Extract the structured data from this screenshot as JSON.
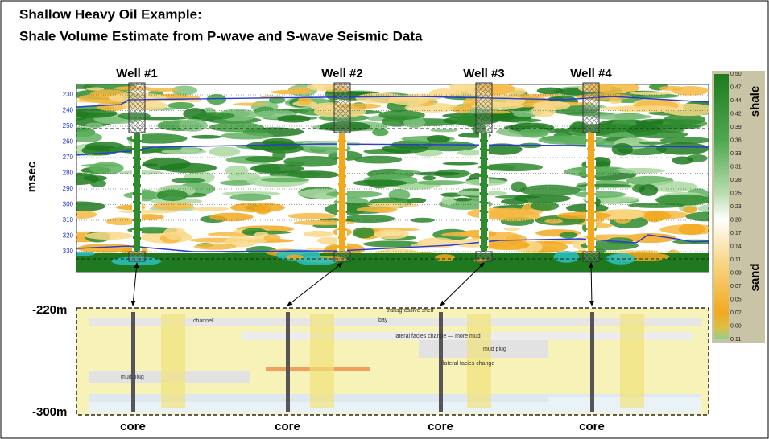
{
  "title": [
    "Shallow Heavy Oil Example:",
    "Shale Volume Estimate from P-wave and S-wave Seismic Data"
  ],
  "wells": [
    "Well #1",
    "Well #2",
    "Well #3",
    "Well #4"
  ],
  "time_axis": {
    "label": "msec",
    "ticks": [
      "230",
      "240",
      "250",
      "260",
      "270",
      "280",
      "290",
      "300",
      "310",
      "320",
      "330"
    ]
  },
  "color_scale": {
    "labels": [
      "0.50",
      "0.47",
      "0.44",
      "0.42",
      "0.39",
      "0.36",
      "0.33",
      "0.31",
      "0.28",
      "0.25",
      "0.23",
      "0.20",
      "0.17",
      "0.14",
      "0.11",
      "0.09",
      "0.07",
      "0.05",
      "0.02",
      "0.00",
      "0.11"
    ],
    "top_label": "shale",
    "bottom_label": "sand"
  },
  "cross_section": {
    "top_depth": "-220m",
    "bottom_depth": "-300m",
    "annotations": [
      "transgressive shelf",
      "channel",
      "bay",
      "lateral facies change — more mud",
      "mud plug",
      "lateral facies change",
      "mud plug"
    ]
  },
  "core_labels": [
    "core",
    "core",
    "core",
    "core"
  ]
}
